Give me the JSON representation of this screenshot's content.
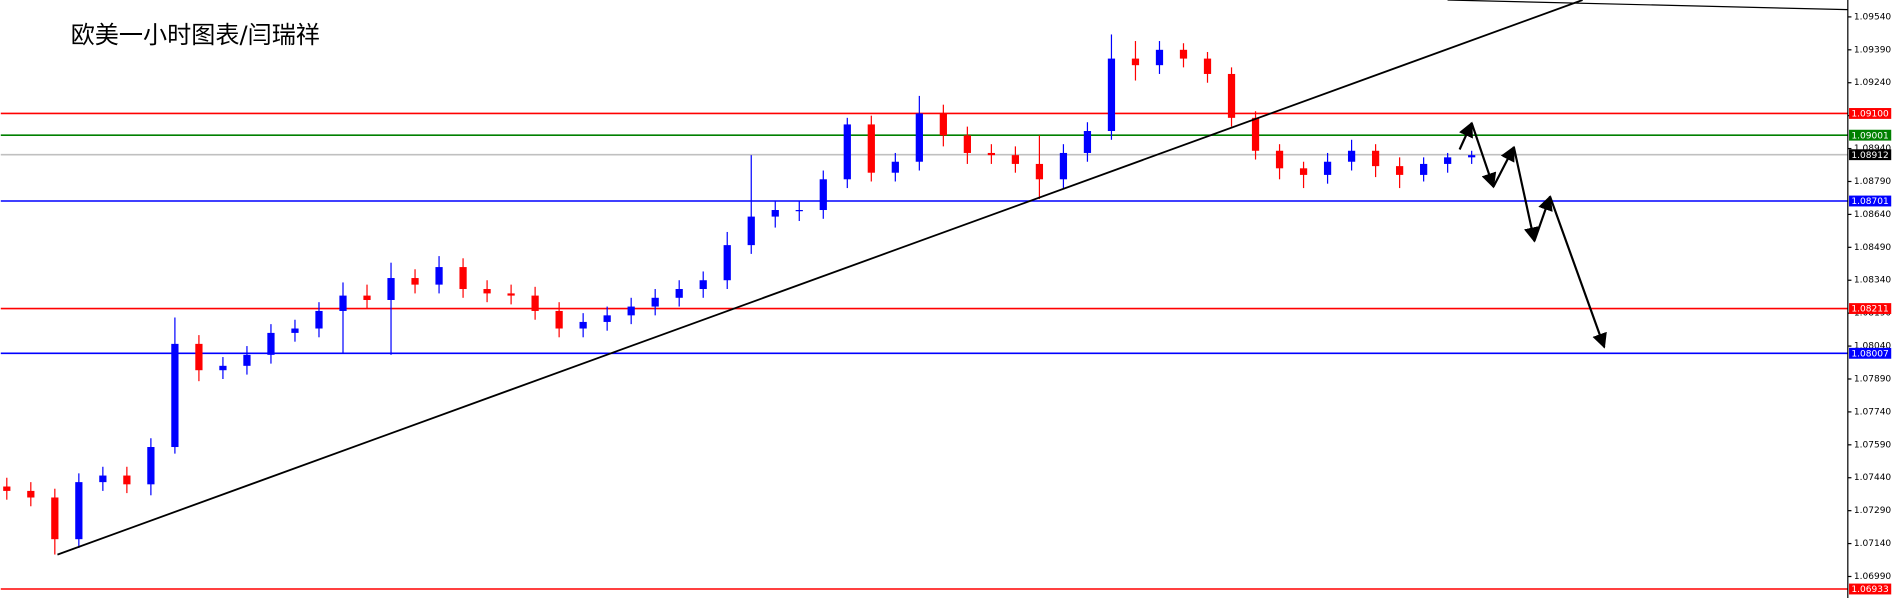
{
  "chart_data": {
    "type": "candlestick",
    "title": "欧美一小时图表/闫瑞祥",
    "up_color": "#0000ff",
    "down_color": "#ff0000",
    "categories": [
      null,
      null,
      null,
      null,
      null,
      null,
      null,
      null,
      null,
      null,
      null,
      null,
      null,
      null,
      null,
      null,
      null,
      null,
      null,
      null,
      null,
      null,
      null,
      null,
      null,
      null,
      null,
      null,
      null,
      null,
      null,
      null,
      null,
      null,
      null,
      null,
      null,
      null,
      null,
      null,
      null,
      null,
      null,
      null,
      null,
      null,
      null,
      null,
      null,
      null,
      null,
      null,
      null,
      null,
      null,
      null,
      null,
      null,
      null,
      null,
      null,
      null
    ],
    "open": [
      1.074,
      1.0738,
      1.0735,
      1.0716,
      1.0742,
      1.0745,
      1.0741,
      1.0758,
      1.0805,
      1.0793,
      1.0795,
      1.08,
      1.081,
      1.0812,
      1.082,
      1.0827,
      1.0825,
      1.0835,
      1.0832,
      1.084,
      1.083,
      1.0828,
      1.0827,
      1.082,
      1.0812,
      1.0815,
      1.0818,
      1.0822,
      1.0826,
      1.083,
      1.0834,
      1.085,
      1.0863,
      1.0866,
      1.0866,
      1.088,
      1.0905,
      1.0883,
      1.0888,
      1.091,
      1.09,
      1.0892,
      1.0891,
      1.0887,
      1.088,
      1.0892,
      1.0902,
      1.0935,
      1.0932,
      1.0939,
      1.0935,
      1.0928,
      1.0908,
      1.0893,
      1.0885,
      1.0882,
      1.0888,
      1.0893,
      1.0886,
      1.0882,
      1.0887,
      1.089
    ],
    "high": [
      1.0744,
      1.0742,
      1.0739,
      1.0746,
      1.0749,
      1.0749,
      1.0762,
      1.0817,
      1.0809,
      1.0799,
      1.0804,
      1.0814,
      1.0816,
      1.0824,
      1.0833,
      1.0832,
      1.0842,
      1.0839,
      1.0845,
      1.0844,
      1.0834,
      1.0832,
      1.0831,
      1.0824,
      1.0819,
      1.0822,
      1.0826,
      1.083,
      1.0834,
      1.0838,
      1.0856,
      1.0891,
      1.087,
      1.087,
      1.0884,
      1.0908,
      1.0909,
      1.0892,
      1.0918,
      1.0914,
      1.0904,
      1.0896,
      1.0895,
      1.09,
      1.0896,
      1.0906,
      1.0946,
      1.0943,
      1.0943,
      1.0942,
      1.0938,
      1.0931,
      1.0911,
      1.0896,
      1.0888,
      1.0892,
      1.0898,
      1.0896,
      1.089,
      1.089,
      1.0892,
      1.0893
    ],
    "low": [
      1.0734,
      1.0731,
      1.0709,
      1.0712,
      1.0738,
      1.0737,
      1.0736,
      1.0755,
      1.0788,
      1.0789,
      1.0791,
      1.0796,
      1.0806,
      1.0808,
      1.0801,
      1.0821,
      1.08,
      1.0828,
      1.0828,
      1.0826,
      1.0824,
      1.0823,
      1.0816,
      1.0808,
      1.0808,
      1.0811,
      1.0814,
      1.0818,
      1.0822,
      1.0826,
      1.083,
      1.0846,
      1.0858,
      1.0861,
      1.0862,
      1.0876,
      1.0879,
      1.0879,
      1.0884,
      1.0895,
      1.0887,
      1.0887,
      1.0883,
      1.0871,
      1.0876,
      1.0888,
      1.0898,
      1.0925,
      1.0928,
      1.0931,
      1.0924,
      1.0904,
      1.0889,
      1.088,
      1.0876,
      1.0878,
      1.0884,
      1.0881,
      1.0876,
      1.0879,
      1.0883,
      1.0887
    ],
    "close": [
      1.0738,
      1.0735,
      1.0716,
      1.0742,
      1.0745,
      1.0741,
      1.0758,
      1.0805,
      1.0793,
      1.0795,
      1.08,
      1.081,
      1.0812,
      1.082,
      1.0827,
      1.0825,
      1.0835,
      1.0832,
      1.084,
      1.083,
      1.0828,
      1.0827,
      1.082,
      1.0812,
      1.0815,
      1.0818,
      1.0822,
      1.0826,
      1.083,
      1.0834,
      1.085,
      1.0863,
      1.0866,
      1.0866,
      1.088,
      1.0905,
      1.0883,
      1.0888,
      1.091,
      1.09,
      1.0892,
      1.0891,
      1.0887,
      1.088,
      1.0892,
      1.0902,
      1.0935,
      1.0932,
      1.0939,
      1.0935,
      1.0928,
      1.0908,
      1.0893,
      1.0885,
      1.0882,
      1.0888,
      1.0893,
      1.0886,
      1.0882,
      1.0887,
      1.089,
      1.0891
    ],
    "ylim": [
      1.06892,
      1.09617
    ],
    "yticks": [
      {
        "value": 1.0954,
        "label": "1.09540"
      },
      {
        "value": 1.0939,
        "label": "1.09390"
      },
      {
        "value": 1.0924,
        "label": "1.09240"
      },
      {
        "value": 1.0909,
        "label": "1.09090"
      },
      {
        "value": 1.0894,
        "label": "1.08940"
      },
      {
        "value": 1.0879,
        "label": "1.08790"
      },
      {
        "value": 1.0864,
        "label": "1.08640"
      },
      {
        "value": 1.0849,
        "label": "1.08490"
      },
      {
        "value": 1.0834,
        "label": "1.08340"
      },
      {
        "value": 1.0819,
        "label": "1.08190"
      },
      {
        "value": 1.0804,
        "label": "1.08040"
      },
      {
        "value": 1.0789,
        "label": "1.07890"
      },
      {
        "value": 1.0774,
        "label": "1.07740"
      },
      {
        "value": 1.0759,
        "label": "1.07590"
      },
      {
        "value": 1.0744,
        "label": "1.07440"
      },
      {
        "value": 1.0729,
        "label": "1.07290"
      },
      {
        "value": 1.0714,
        "label": "1.07140"
      },
      {
        "value": 1.0699,
        "label": "1.06990"
      }
    ],
    "levels": [
      {
        "value": 1.091,
        "label": "1.09100",
        "color": "#ff0000",
        "box_color": "#ff0000"
      },
      {
        "value": 1.09001,
        "label": "1.09001",
        "color": "#008000",
        "box_color": "#008000"
      },
      {
        "value": 1.08912,
        "label": "1.08912",
        "color": "#c0c0c0",
        "box_color": "#000000"
      },
      {
        "value": 1.08701,
        "label": "1.08701",
        "color": "#0000ff",
        "box_color": "#0000ff"
      },
      {
        "value": 1.08211,
        "label": "1.08211",
        "color": "#ff0000",
        "box_color": "#ff0000"
      },
      {
        "value": 1.08007,
        "label": "1.08007",
        "color": "#0000ff",
        "box_color": "#0000ff"
      },
      {
        "value": 1.06933,
        "label": "1.06933",
        "color": "#ff0000",
        "box_color": "#ff0000"
      }
    ]
  }
}
